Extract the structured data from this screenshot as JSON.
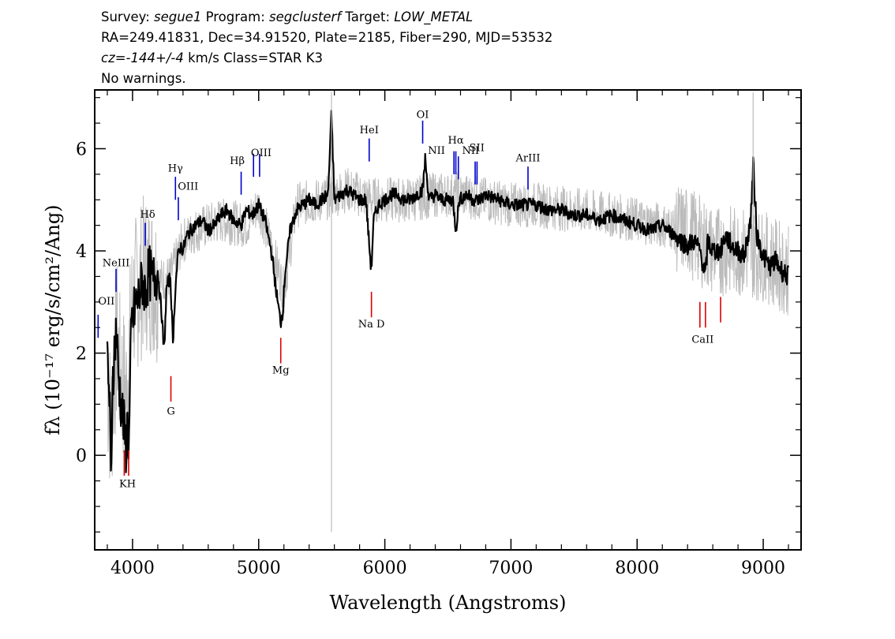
{
  "header": {
    "line1": {
      "survey_label": "Survey: ",
      "survey": "segue1",
      "program_label": " Program: ",
      "program": "segclusterf",
      "target_label": " Target: ",
      "target": "LOW_METAL"
    },
    "line2": "RA=249.41831, Dec=34.91520, Plate=2185, Fiber=290, MJD=53532",
    "line3": {
      "cz": "cz=-144+/-4",
      "rest": " km/s Class=STAR K3"
    },
    "line4": "No warnings."
  },
  "chart_data": {
    "type": "line",
    "xlabel": "Wavelength (Angstroms)",
    "ylabel": "fλ (10⁻¹⁷ erg/s/cm²/Ang)",
    "xlim": [
      3700,
      9300
    ],
    "ylim": [
      -1.85,
      7.15
    ],
    "x_ticks": [
      4000,
      5000,
      6000,
      7000,
      8000,
      9000
    ],
    "y_ticks": [
      0,
      2,
      4,
      6
    ],
    "grid": false,
    "series": [
      {
        "role": "error band",
        "color": "#bbbbbb",
        "x": [
          3800,
          3830,
          3850,
          3880,
          3900,
          3950,
          4000,
          4100,
          4200,
          4300,
          4400,
          4500,
          4700,
          4900,
          5000,
          5100,
          5200,
          5300,
          5500,
          5700,
          5900,
          6000,
          6200,
          6400,
          6600,
          6800,
          7000,
          7200,
          7500,
          7800,
          8000,
          8200,
          8400,
          8600,
          8800,
          9000,
          9200
        ],
        "values": [
          1.5,
          0.5,
          1.5,
          2.3,
          1.6,
          1.2,
          3.0,
          3.6,
          3.4,
          3.5,
          4.2,
          4.4,
          4.6,
          4.5,
          4.9,
          4.1,
          3.2,
          4.9,
          5.0,
          5.2,
          5.0,
          5.0,
          5.0,
          5.1,
          5.1,
          5.0,
          4.9,
          4.9,
          4.8,
          4.7,
          4.6,
          4.5,
          4.4,
          4.0,
          4.0,
          3.9,
          3.6
        ]
      },
      {
        "role": "flux",
        "color": "#000000",
        "x": [
          3800,
          3820,
          3830,
          3840,
          3850,
          3870,
          3890,
          3910,
          3930,
          3950,
          3960,
          3970,
          3990,
          4020,
          4050,
          4080,
          4101,
          4130,
          4160,
          4200,
          4230,
          4250,
          4270,
          4300,
          4320,
          4340,
          4360,
          4380,
          4400,
          4430,
          4460,
          4500,
          4550,
          4600,
          4650,
          4700,
          4750,
          4800,
          4861,
          4900,
          4950,
          5000,
          5050,
          5100,
          5150,
          5175,
          5190,
          5210,
          5250,
          5300,
          5350,
          5400,
          5450,
          5500,
          5550,
          5577,
          5600,
          5650,
          5700,
          5750,
          5800,
          5850,
          5880,
          5893,
          5910,
          5950,
          6000,
          6050,
          6100,
          6150,
          6200,
          6250,
          6300,
          6320,
          6350,
          6400,
          6450,
          6500,
          6540,
          6563,
          6590,
          6650,
          6700,
          6750,
          6800,
          6900,
          7000,
          7100,
          7200,
          7300,
          7400,
          7500,
          7600,
          7700,
          7800,
          7900,
          8000,
          8100,
          8200,
          8300,
          8400,
          8450,
          8500,
          8542,
          8560,
          8600,
          8662,
          8700,
          8750,
          8800,
          8850,
          8900,
          8920,
          8950,
          9000,
          9050,
          9100,
          9150,
          9200
        ],
        "values": [
          2.0,
          0.9,
          -0.9,
          1.5,
          1.8,
          2.5,
          1.5,
          1.0,
          0.6,
          0.1,
          0.8,
          0.0,
          2.5,
          2.9,
          3.1,
          3.4,
          3.2,
          3.6,
          3.4,
          3.6,
          2.8,
          2.0,
          3.3,
          3.5,
          2.2,
          3.3,
          3.9,
          4.1,
          4.0,
          4.3,
          4.4,
          4.5,
          4.6,
          4.4,
          4.5,
          4.7,
          4.8,
          4.6,
          4.5,
          4.8,
          4.7,
          4.9,
          4.6,
          4.0,
          3.0,
          2.6,
          2.8,
          3.6,
          4.4,
          4.8,
          4.9,
          5.0,
          4.9,
          5.0,
          5.1,
          6.7,
          5.0,
          5.1,
          5.2,
          5.1,
          5.0,
          5.0,
          4.0,
          3.6,
          4.6,
          4.9,
          5.0,
          5.1,
          5.1,
          5.0,
          5.0,
          5.1,
          5.2,
          5.8,
          5.0,
          5.1,
          5.0,
          5.0,
          5.0,
          4.4,
          5.0,
          5.1,
          5.0,
          5.0,
          5.1,
          5.0,
          4.9,
          4.9,
          4.9,
          4.8,
          4.8,
          4.7,
          4.7,
          4.6,
          4.7,
          4.6,
          4.5,
          4.4,
          4.5,
          4.3,
          4.1,
          4.2,
          4.0,
          3.5,
          4.2,
          4.0,
          4.0,
          4.3,
          4.1,
          4.0,
          3.9,
          4.6,
          5.7,
          4.3,
          3.9,
          3.7,
          3.8,
          3.6,
          3.5
        ]
      }
    ],
    "emission_lines": [
      {
        "label": "OII",
        "x": 3727,
        "y": 2.3
      },
      {
        "label": "NeIII",
        "x": 3869,
        "y": 3.2
      },
      {
        "label": "Hδ",
        "x": 4101,
        "y": 4.1
      },
      {
        "label": "Hγ",
        "x": 4340,
        "y": 5.0
      },
      {
        "label": "OIII",
        "x": 4363,
        "y": 4.6
      },
      {
        "label": "Hβ",
        "x": 4861,
        "y": 5.1
      },
      {
        "label": "OIII",
        "x": 4959,
        "y": 5.45
      },
      {
        "label": "OIII",
        "x": 5007,
        "y": 5.45
      },
      {
        "label": "HeI",
        "x": 5876,
        "y": 5.75
      },
      {
        "label": "OI",
        "x": 6300,
        "y": 6.1
      },
      {
        "label": "NII",
        "x": 6548,
        "y": 5.5
      },
      {
        "label": "Hα",
        "x": 6563,
        "y": 5.5
      },
      {
        "label": "NII",
        "x": 6583,
        "y": 5.4
      },
      {
        "label": "SII",
        "x": 6716,
        "y": 5.3
      },
      {
        "label": "SII",
        "x": 6731,
        "y": 5.3
      },
      {
        "label": "ArIII",
        "x": 7135,
        "y": 5.2
      }
    ],
    "absorption_lines": [
      {
        "label": "K",
        "x": 3934,
        "y": -0.4
      },
      {
        "label": "H",
        "x": 3969,
        "y": -0.4
      },
      {
        "label": "G",
        "x": 4304,
        "y": 1.05
      },
      {
        "label": "Mg",
        "x": 5175,
        "y": 1.8
      },
      {
        "label": "Na D",
        "x": 5894,
        "y": 2.7
      },
      {
        "label": "CaII",
        "x": 8498,
        "y": 2.5
      },
      {
        "label": "CaII",
        "x": 8542,
        "y": 2.5
      },
      {
        "label": "CaII",
        "x": 8662,
        "y": 2.6
      }
    ],
    "line_label_text": {
      "OII": "OII",
      "NeIII": "NeIII",
      "Hdelta": "Hδ",
      "Hgamma": "Hγ",
      "OIII": "OIII",
      "Hbeta": "Hβ",
      "HeI": "HeI",
      "OI": "OI",
      "NII": "NII",
      "Halpha": "Hα",
      "SII": "SII",
      "ArIII": "ArIII",
      "KH": "KH",
      "G": "G",
      "Mg": "Mg",
      "NaD": "Na D",
      "CaII": "CaII"
    }
  },
  "colors": {
    "emission": "#0000cc",
    "absorption": "#dd0000",
    "flux": "#000000",
    "error": "#bbbbbb"
  }
}
